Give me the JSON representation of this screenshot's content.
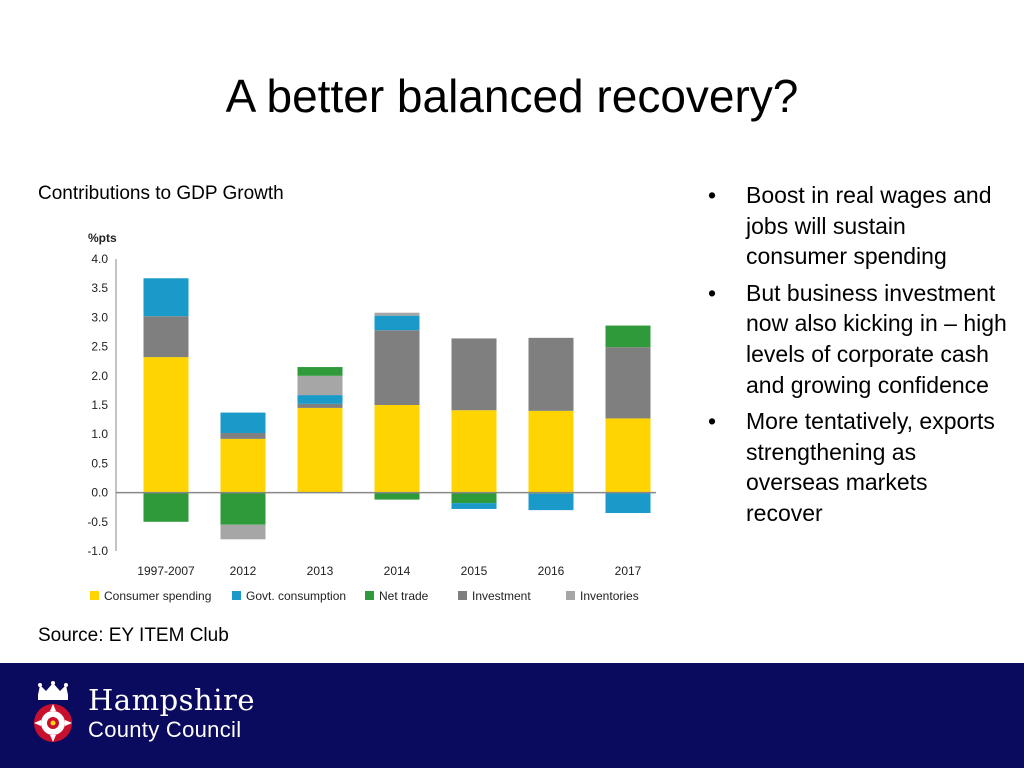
{
  "slide": {
    "title": "A better balanced recovery?",
    "caption": "Contributions to GDP Growth",
    "source": "Source:  EY ITEM Club",
    "bullets": [
      "Boost in real wages and jobs will sustain consumer spending",
      "But business investment now also kicking in – high levels of corporate cash and growing confidence",
      "More tentatively, exports strengthening as overseas markets recover"
    ],
    "bullet_symbol": "•"
  },
  "footer": {
    "org_line_1": "Hampshire",
    "org_line_2": "County Council",
    "background_color": "#0a0a5e",
    "emblem_icon": "hampshire-rose-crown-emblem"
  },
  "chart_data": {
    "type": "bar",
    "stacked": true,
    "ylabel": "%pts",
    "ylim": [
      -1.0,
      4.0
    ],
    "yticks": [
      "4.0",
      "3.5",
      "3.0",
      "2.5",
      "2.0",
      "1.5",
      "1.0",
      "0.5",
      "0.0",
      "-0.5",
      "-1.0"
    ],
    "categories": [
      "1997-2007",
      "2012",
      "2013",
      "2014",
      "2015",
      "2016",
      "2017"
    ],
    "legend_position": "bottom",
    "series": [
      {
        "name": "Consumer spending",
        "color": "#ffd400",
        "values": [
          2.32,
          0.92,
          1.45,
          1.5,
          1.41,
          1.4,
          1.27
        ]
      },
      {
        "name": "Govt. consumption",
        "color": "#1a9ac9",
        "values": [
          0.65,
          0.35,
          0.15,
          0.25,
          -0.1,
          -0.28,
          -0.35
        ]
      },
      {
        "name": "Net trade",
        "color": "#2e9a3a",
        "values": [
          -0.5,
          -0.55,
          0.15,
          -0.12,
          -0.18,
          -0.02,
          0.37
        ]
      },
      {
        "name": "Investment",
        "color": "#7f7f7f",
        "values": [
          0.7,
          0.1,
          0.07,
          1.28,
          1.23,
          1.25,
          1.22
        ]
      },
      {
        "name": "Inventories",
        "color": "#a6a6a6",
        "values": [
          0.0,
          -0.25,
          0.33,
          0.05,
          0.0,
          0.0,
          0.0
        ]
      }
    ],
    "stack_order_positive": [
      "Consumer spending",
      "Investment",
      "Govt. consumption",
      "Inventories",
      "Net trade"
    ],
    "stack_order_negative": [
      "Net trade",
      "Govt. consumption",
      "Investment",
      "Inventories"
    ],
    "axis_color": "#888888",
    "grid": false
  }
}
